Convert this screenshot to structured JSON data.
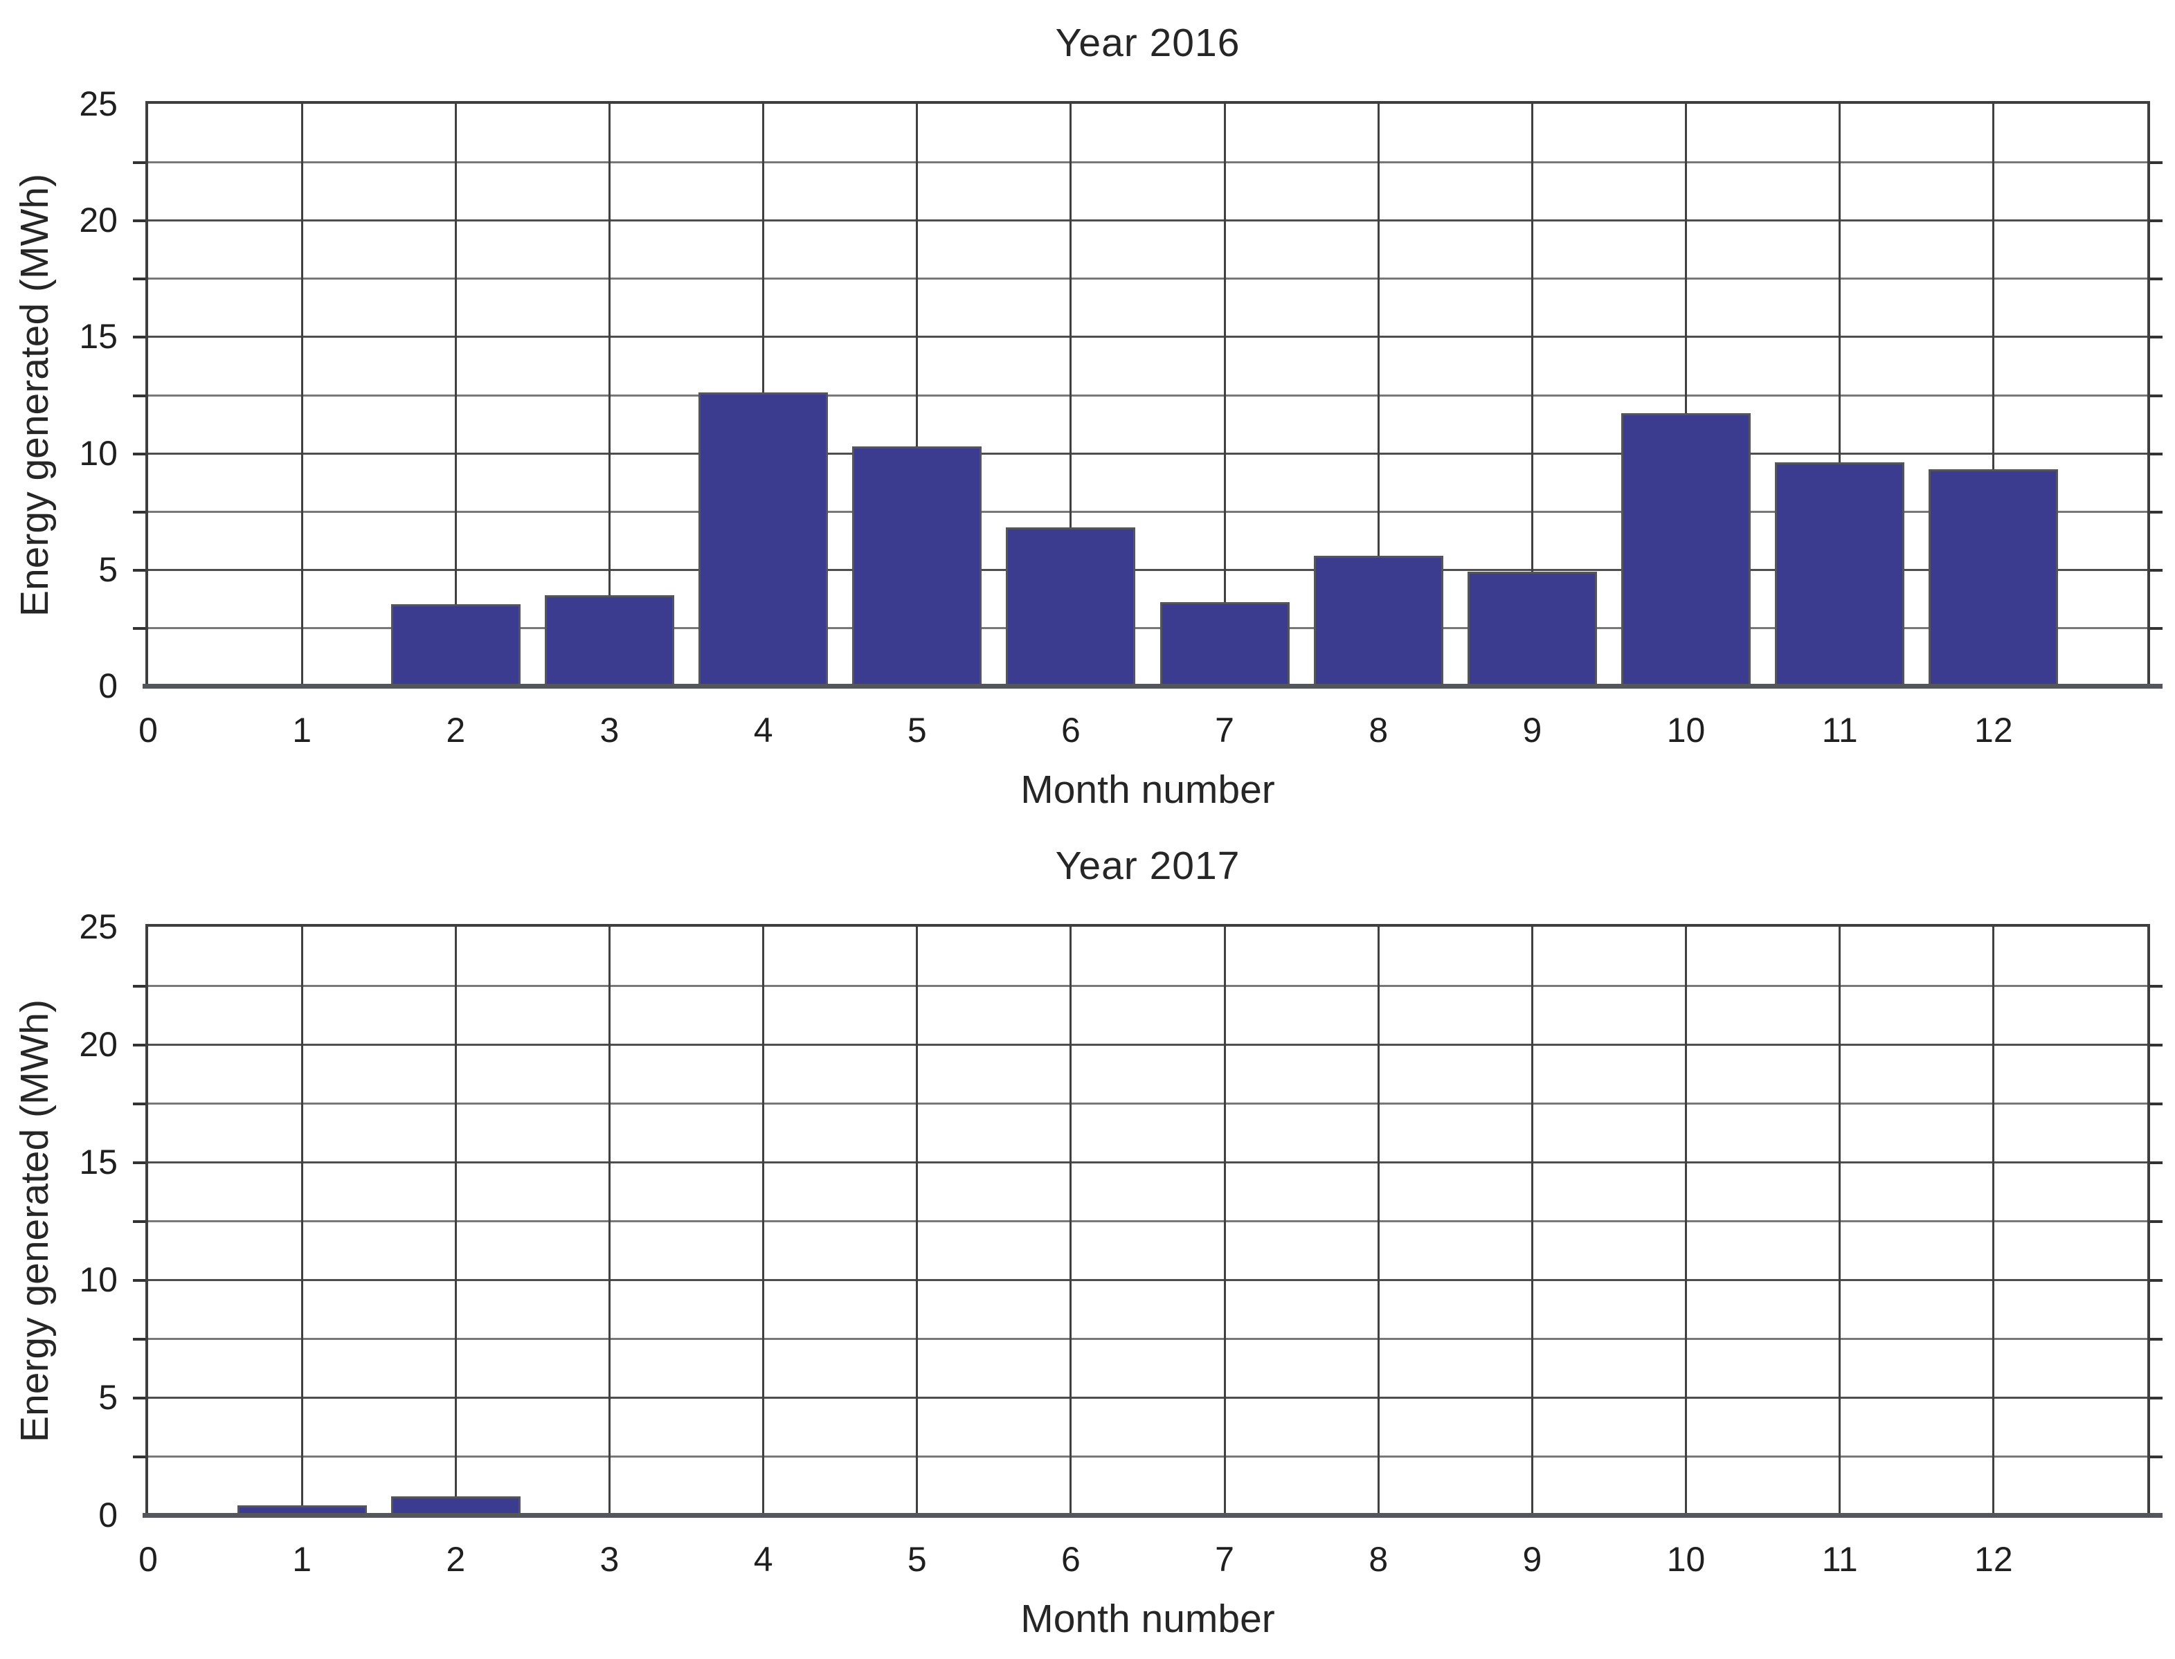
{
  "figure": {
    "background": "#ffffff"
  },
  "colors": {
    "bar_fill": "#3b3b8f",
    "bar_edge": "#54545c",
    "grid_major": "#4e4e4e",
    "grid_minor": "#787878",
    "grid_vertical": "#404040",
    "frame": "#3e3e3e",
    "axis_bottom": "#55555c",
    "text": "#262626"
  },
  "chart_data": [
    {
      "type": "bar",
      "title": "Year 2016",
      "xlabel": "Month number",
      "ylabel": "Energy generated (MWh)",
      "categories": [
        1,
        2,
        3,
        4,
        5,
        6,
        7,
        8,
        9,
        10,
        11,
        12
      ],
      "values": [
        0,
        3.5,
        3.9,
        12.6,
        10.3,
        6.8,
        3.6,
        5.6,
        4.9,
        11.7,
        9.6,
        9.3
      ],
      "xlim": [
        0,
        13
      ],
      "ylim": [
        0,
        25
      ],
      "xticks": [
        0,
        1,
        2,
        3,
        4,
        5,
        6,
        7,
        8,
        9,
        10,
        11,
        12
      ],
      "yticks": [
        0,
        5,
        10,
        15,
        20,
        25
      ],
      "y_grid_step": 2.5,
      "grid": "on",
      "legend": "none",
      "bar_width_months": 0.84
    },
    {
      "type": "bar",
      "title": "Year 2017",
      "xlabel": "Month number",
      "ylabel": "Energy generated (MWh)",
      "categories": [
        1,
        2,
        3,
        4,
        5,
        6,
        7,
        8,
        9,
        10,
        11,
        12
      ],
      "values": [
        0.4,
        0.8,
        0,
        0,
        0,
        0,
        0,
        0,
        0,
        0,
        0,
        0
      ],
      "xlim": [
        0,
        13
      ],
      "ylim": [
        0,
        25
      ],
      "xticks": [
        0,
        1,
        2,
        3,
        4,
        5,
        6,
        7,
        8,
        9,
        10,
        11,
        12
      ],
      "yticks": [
        0,
        5,
        10,
        15,
        20,
        25
      ],
      "y_grid_step": 2.5,
      "grid": "on",
      "legend": "none",
      "bar_width_months": 0.84
    }
  ]
}
